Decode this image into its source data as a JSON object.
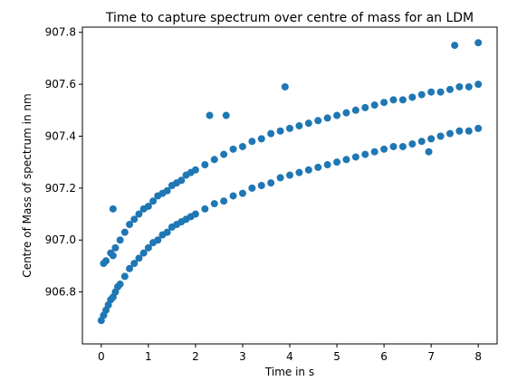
{
  "chart_data": {
    "type": "scatter",
    "title": "Time to capture spectrum over centre of mass for an LDM",
    "xlabel": "Time in s",
    "ylabel": "Centre of Mass of spectrum in nm",
    "xlim": [
      -0.4,
      8.4
    ],
    "ylim": [
      906.6,
      907.82
    ],
    "xticks": [
      0,
      1,
      2,
      3,
      4,
      5,
      6,
      7,
      8
    ],
    "xtick_labels": [
      "0",
      "1",
      "2",
      "3",
      "4",
      "5",
      "6",
      "7",
      "8"
    ],
    "yticks": [
      906.8,
      907.0,
      907.2,
      907.4,
      907.6,
      907.8
    ],
    "ytick_labels": [
      "906.8",
      "907.0",
      "907.2",
      "907.4",
      "907.6",
      "907.8"
    ],
    "grid": false,
    "legend": "none",
    "marker_color": "#1f77b4",
    "series": [
      {
        "x": [
          0.0,
          0.05,
          0.1,
          0.15,
          0.2,
          0.25,
          0.3,
          0.35,
          0.4,
          0.5,
          0.6,
          0.7,
          0.8,
          0.9,
          1.0,
          1.1,
          1.2,
          1.3,
          1.4,
          1.5,
          1.6,
          1.7,
          1.8,
          1.9,
          2.0,
          2.2,
          2.4,
          2.6,
          2.8,
          3.0,
          3.2,
          3.4,
          3.6,
          3.8,
          4.0,
          4.2,
          4.4,
          4.6,
          4.8,
          5.0,
          5.2,
          5.4,
          5.6,
          5.8,
          6.0,
          6.2,
          6.4,
          6.6,
          6.8,
          7.0,
          7.2,
          7.4,
          7.6,
          7.8,
          8.0
        ],
        "y": [
          906.69,
          906.71,
          906.73,
          906.75,
          906.77,
          906.78,
          906.8,
          906.82,
          906.83,
          906.86,
          906.89,
          906.91,
          906.93,
          906.95,
          906.97,
          906.99,
          907.0,
          907.02,
          907.03,
          907.05,
          907.06,
          907.07,
          907.08,
          907.09,
          907.1,
          907.12,
          907.14,
          907.15,
          907.17,
          907.18,
          907.2,
          907.21,
          907.22,
          907.24,
          907.25,
          907.26,
          907.27,
          907.28,
          907.29,
          907.3,
          907.31,
          907.32,
          907.33,
          907.34,
          907.35,
          907.36,
          907.36,
          907.37,
          907.38,
          907.39,
          907.4,
          907.41,
          907.42,
          907.42,
          907.43
        ]
      },
      {
        "x": [
          0.05,
          0.1,
          0.2,
          0.25,
          0.3,
          0.4,
          0.5,
          0.6,
          0.7,
          0.8,
          0.9,
          1.0,
          1.1,
          1.2,
          1.3,
          1.4,
          1.5,
          1.6,
          1.7,
          1.8,
          1.9,
          2.0,
          2.2,
          2.4,
          2.6,
          2.8,
          3.0,
          3.2,
          3.4,
          3.6,
          3.8,
          4.0,
          4.2,
          4.4,
          4.6,
          4.8,
          5.0,
          5.2,
          5.4,
          5.6,
          5.8,
          6.0,
          6.2,
          6.4,
          6.6,
          6.8,
          7.0,
          7.2,
          7.4,
          7.6,
          7.8,
          8.0
        ],
        "y": [
          906.91,
          906.92,
          906.95,
          906.94,
          906.97,
          907.0,
          907.03,
          907.06,
          907.08,
          907.1,
          907.12,
          907.13,
          907.15,
          907.17,
          907.18,
          907.19,
          907.21,
          907.22,
          907.23,
          907.25,
          907.26,
          907.27,
          907.29,
          907.31,
          907.33,
          907.35,
          907.36,
          907.38,
          907.39,
          907.41,
          907.42,
          907.43,
          907.44,
          907.45,
          907.46,
          907.47,
          907.48,
          907.49,
          907.5,
          907.51,
          907.52,
          907.53,
          907.54,
          907.54,
          907.55,
          907.56,
          907.57,
          907.57,
          907.58,
          907.59,
          907.59,
          907.6
        ]
      },
      {
        "x": [
          0.25,
          2.3,
          2.65,
          3.9,
          7.5,
          8.0,
          6.95
        ],
        "y": [
          907.12,
          907.48,
          907.48,
          907.59,
          907.75,
          907.76,
          907.34
        ]
      }
    ]
  }
}
